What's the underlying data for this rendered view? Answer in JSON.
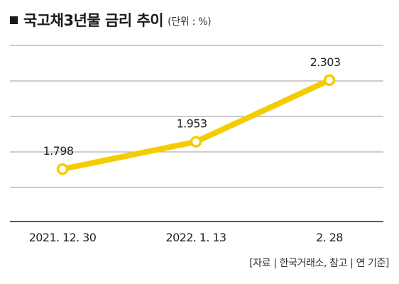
{
  "header": {
    "title": "국고채3년물 금리 추이",
    "unit": "(단위 : %)"
  },
  "footer": {
    "source": "[자료 | 한국거래소, 참고 | 연 기준]"
  },
  "colors": {
    "series": "#f5cc00",
    "grid": "#9a9a9a",
    "text": "#222222"
  },
  "chart_data": {
    "type": "line",
    "categories": [
      "2021. 12. 30",
      "2022. 1. 13",
      "2. 28"
    ],
    "series": [
      {
        "values": [
          1.798,
          1.953,
          2.303
        ]
      }
    ],
    "data_labels": [
      "1.798",
      "1.953",
      "2.303"
    ],
    "ylim": [
      1.5,
      2.5
    ],
    "grid": true,
    "legend": "none"
  }
}
